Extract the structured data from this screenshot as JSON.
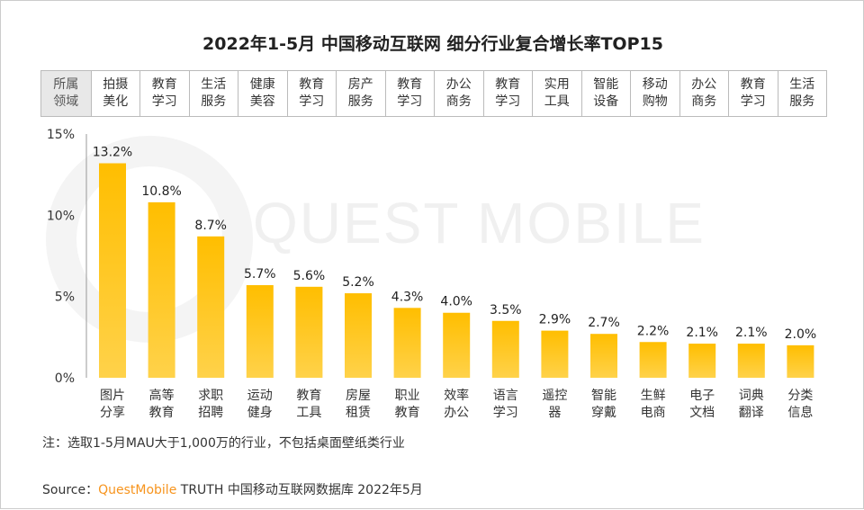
{
  "chart_data": {
    "type": "bar",
    "title": "2022年1-5月 中国移动互联网 细分行业复合增长率TOP15",
    "categories": [
      "图片\n分享",
      "高等\n教育",
      "求职\n招聘",
      "运动\n健身",
      "教育\n工具",
      "房屋\n租赁",
      "职业\n教育",
      "效率\n办公",
      "语言\n学习",
      "遥控\n器",
      "智能\n穿戴",
      "生鲜\n电商",
      "电子\n文档",
      "词典\n翻译",
      "分类\n信息"
    ],
    "values": [
      13.2,
      10.8,
      8.7,
      5.7,
      5.6,
      5.2,
      4.3,
      4.0,
      3.5,
      2.9,
      2.7,
      2.2,
      2.1,
      2.1,
      2.0
    ],
    "value_labels": [
      "13.2%",
      "10.8%",
      "8.7%",
      "5.7%",
      "5.6%",
      "5.2%",
      "4.3%",
      "4.0%",
      "3.5%",
      "2.9%",
      "2.7%",
      "2.2%",
      "2.1%",
      "2.1%",
      "2.0%"
    ],
    "ylim": [
      0,
      15
    ],
    "yticks": [
      "0%",
      "5%",
      "10%",
      "15%"
    ],
    "grid": false,
    "colors": {
      "bar_top": "#FFBE00",
      "bar_bottom": "#FFD24A"
    }
  },
  "domain_header": "所属\n领域",
  "domains": [
    "拍摄\n美化",
    "教育\n学习",
    "生活\n服务",
    "健康\n美容",
    "教育\n学习",
    "房产\n服务",
    "教育\n学习",
    "办公\n商务",
    "教育\n学习",
    "实用\n工具",
    "智能\n设备",
    "移动\n购物",
    "办公\n商务",
    "教育\n学习",
    "生活\n服务"
  ],
  "watermark": "QUEST MOBILE",
  "note": "注：选取1-5月MAU大于1,000万的行业，不包括桌面壁纸类行业",
  "source": {
    "prefix": "Source：",
    "brand": "QuestMobile",
    "rest": " TRUTH 中国移动互联网数据库 2022年5月"
  }
}
